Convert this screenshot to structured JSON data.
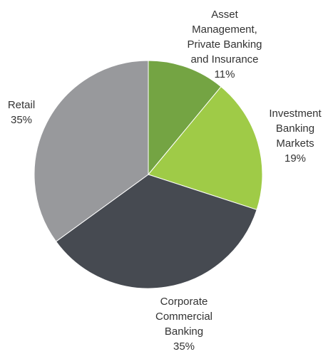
{
  "chart_data": {
    "type": "pie",
    "categories": [
      "Asset\nManagement,\nPrivate Banking\nand Insurance",
      "Investment\nBanking\nMarkets",
      "Corporate\nCommercial\nBanking",
      "Retail"
    ],
    "values": [
      11,
      19,
      35,
      35
    ],
    "value_labels": [
      "11%",
      "19%",
      "35%",
      "35%"
    ],
    "colors": [
      "#74a443",
      "#9fcb47",
      "#464a51",
      "#98999c"
    ]
  }
}
